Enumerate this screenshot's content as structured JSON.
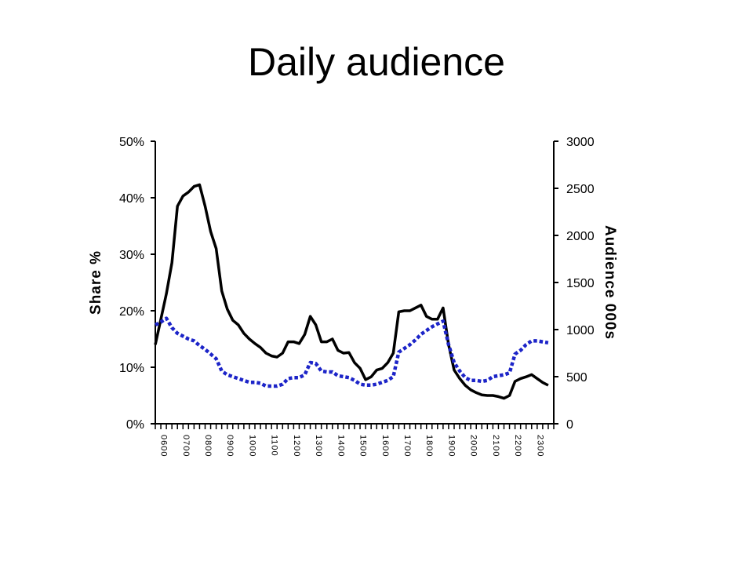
{
  "slide": {
    "title": "Daily audience"
  },
  "chart_data": {
    "type": "line",
    "title": "",
    "ylabel": "Share %",
    "y2label": "Audience 000s",
    "ylim": [
      0,
      50
    ],
    "y2lim": [
      0,
      3000
    ],
    "yticks": [
      "0%",
      "10%",
      "20%",
      "30%",
      "40%",
      "50%"
    ],
    "y2ticks": [
      "0",
      "500",
      "1000",
      "1500",
      "2000",
      "2500",
      "3000"
    ],
    "xtick_labels": [
      "0600",
      "0700",
      "0800",
      "0900",
      "1000",
      "1100",
      "1200",
      "1300",
      "1400",
      "1500",
      "1600",
      "1700",
      "1800",
      "1900",
      "2000",
      "2100",
      "2200",
      "2300"
    ],
    "hours": [
      6,
      7,
      8,
      9,
      10,
      11,
      12,
      13,
      14,
      15,
      16,
      17,
      18,
      19,
      20,
      21,
      22,
      23
    ],
    "colors": {
      "share": "#000000",
      "audience": "#1c24c8"
    },
    "series": [
      {
        "axis": "left",
        "style": "solid",
        "x": [
          6.0,
          6.25,
          6.5,
          6.75,
          7.0,
          7.25,
          7.5,
          7.75,
          8.0,
          8.25,
          8.5,
          8.75,
          9.0,
          9.25,
          9.5,
          9.75,
          10.0,
          10.25,
          10.5,
          10.75,
          11.0,
          11.25,
          11.5,
          11.75,
          12.0,
          12.25,
          12.5,
          12.75,
          13.0,
          13.25,
          13.5,
          13.75,
          14.0,
          14.25,
          14.5,
          14.75,
          15.0,
          15.25,
          15.5,
          15.75,
          16.0,
          16.25,
          16.5,
          16.75,
          17.0,
          17.25,
          17.5,
          17.75,
          18.0,
          18.25,
          18.5,
          18.75,
          19.0,
          19.25,
          19.5,
          19.75,
          20.0,
          20.25,
          20.5,
          20.75,
          21.0,
          21.25,
          21.5,
          21.75,
          22.0,
          22.25,
          22.5,
          22.75,
          23.0,
          23.25,
          23.5,
          23.75
        ],
        "values": [
          14,
          18.5,
          23,
          28.5,
          38.5,
          40.3,
          41,
          42,
          42.3,
          38.5,
          34,
          31,
          23.5,
          20.3,
          18.3,
          17.5,
          16,
          15,
          14.2,
          13.5,
          12.5,
          12,
          11.8,
          12.5,
          14.5,
          14.5,
          14.2,
          15.8,
          19,
          17.5,
          14.5,
          14.5,
          15,
          13,
          12.5,
          12.6,
          10.8,
          9.8,
          7.8,
          8.3,
          9.5,
          9.8,
          10.8,
          12.5,
          19.8,
          20,
          20,
          20.5,
          21,
          19,
          18.5,
          18.5,
          20.5,
          14,
          9.5,
          8,
          6.8,
          6,
          5.5,
          5.1,
          5,
          5,
          4.8,
          4.5,
          5,
          7.5,
          8,
          8.3,
          8.7,
          8,
          7.3,
          6.8
        ]
      },
      {
        "axis": "right",
        "style": "dotted",
        "x": [
          6.0,
          6.25,
          6.5,
          6.75,
          7.0,
          7.25,
          7.5,
          7.75,
          8.0,
          8.25,
          8.5,
          8.75,
          9.0,
          9.25,
          9.5,
          9.75,
          10.0,
          10.25,
          10.5,
          10.75,
          11.0,
          11.25,
          11.5,
          11.75,
          12.0,
          12.25,
          12.5,
          12.75,
          13.0,
          13.25,
          13.5,
          13.75,
          14.0,
          14.25,
          14.5,
          14.75,
          15.0,
          15.25,
          15.5,
          15.75,
          16.0,
          16.25,
          16.5,
          16.75,
          17.0,
          17.25,
          17.5,
          17.75,
          18.0,
          18.25,
          18.5,
          18.75,
          19.0,
          19.25,
          19.5,
          19.75,
          20.0,
          20.25,
          20.5,
          20.75,
          21.0,
          21.25,
          21.5,
          21.75,
          22.0,
          22.25,
          22.5,
          22.75,
          23.0,
          23.25,
          23.5,
          23.75
        ],
        "values": [
          1050,
          1080,
          1120,
          1020,
          960,
          930,
          900,
          880,
          830,
          790,
          740,
          690,
          560,
          520,
          500,
          480,
          460,
          440,
          440,
          430,
          400,
          400,
          400,
          420,
          480,
          490,
          490,
          520,
          650,
          640,
          560,
          550,
          550,
          510,
          500,
          490,
          460,
          420,
          410,
          410,
          420,
          440,
          460,
          500,
          760,
          800,
          840,
          890,
          950,
          990,
          1030,
          1060,
          1090,
          840,
          650,
          560,
          490,
          460,
          460,
          450,
          460,
          500,
          510,
          520,
          540,
          740,
          780,
          840,
          880,
          880,
          870,
          860
        ]
      }
    ]
  }
}
